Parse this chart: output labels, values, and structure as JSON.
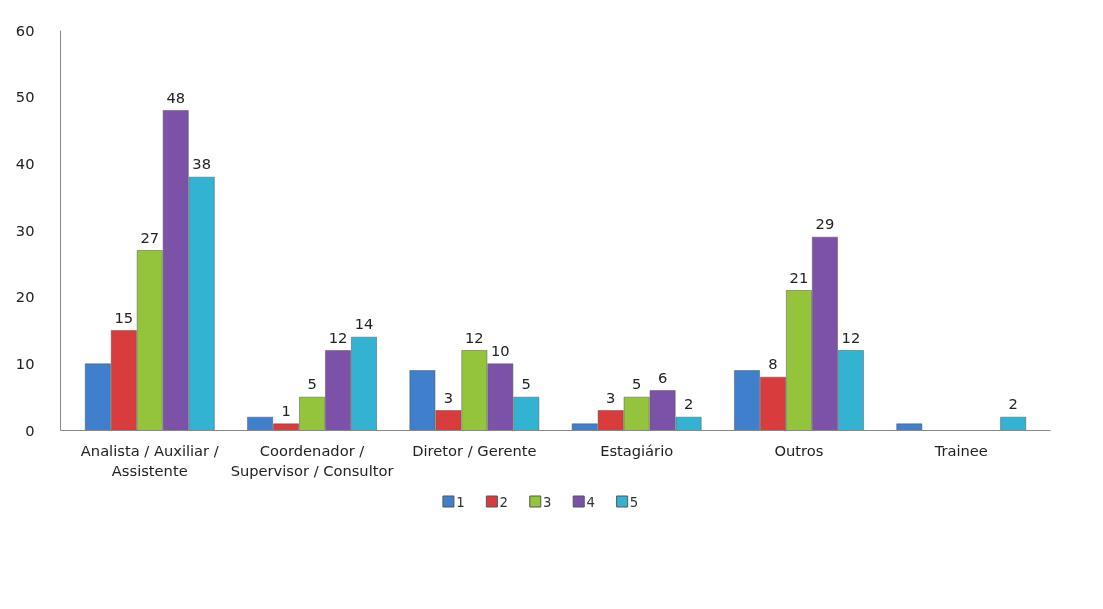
{
  "chart_data": {
    "type": "bar",
    "categories": [
      "Analista / Auxiliar / Assistente",
      "Coordenador / Supervisor / Consultor",
      "Diretor / Gerente",
      "Estagiário",
      "Outros",
      "Trainee"
    ],
    "series": [
      {
        "name": "1",
        "color": "#3f7fcc",
        "values": [
          10,
          2,
          9,
          1,
          9,
          1
        ],
        "value_labels": [
          null,
          null,
          null,
          null,
          null,
          null
        ]
      },
      {
        "name": "2",
        "color": "#d83c3c",
        "values": [
          15,
          1,
          3,
          3,
          8,
          null
        ],
        "value_labels": [
          "15",
          "1",
          "3",
          "3",
          "8",
          null
        ]
      },
      {
        "name": "3",
        "color": "#94c43c",
        "values": [
          27,
          5,
          12,
          5,
          21,
          null
        ],
        "value_labels": [
          "27",
          "5",
          "12",
          "5",
          "21",
          null
        ]
      },
      {
        "name": "4",
        "color": "#7b52a8",
        "values": [
          48,
          12,
          10,
          6,
          29,
          null
        ],
        "value_labels": [
          "48",
          "12",
          "10",
          "6",
          "29",
          null
        ]
      },
      {
        "name": "5",
        "color": "#31b3d1",
        "values": [
          38,
          14,
          5,
          2,
          12,
          2
        ],
        "value_labels": [
          "38",
          "14",
          "5",
          "2",
          "12",
          "2"
        ]
      }
    ],
    "ylim": [
      0,
      60
    ],
    "yticks": [
      0,
      10,
      20,
      30,
      40,
      50,
      60
    ],
    "grid": false,
    "legend": "bottom"
  }
}
